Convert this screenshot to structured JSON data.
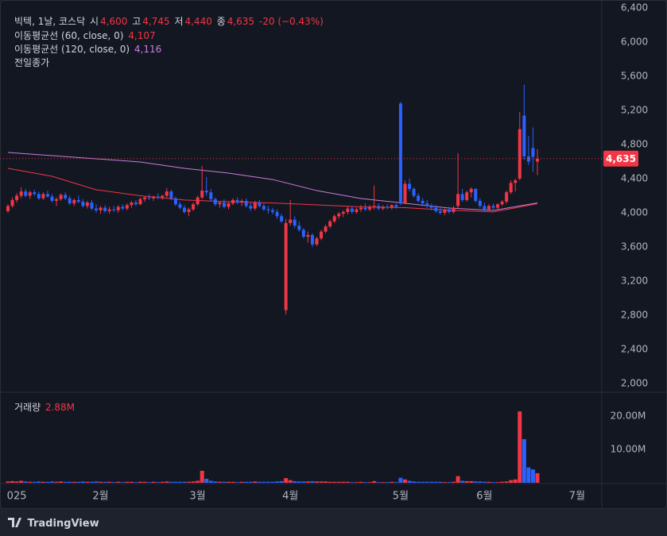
{
  "header": {
    "symbol": "빅텍, 1날, 코스닥",
    "o_label": "시",
    "o": "4,600",
    "h_label": "고",
    "h": "4,745",
    "l_label": "저",
    "l": "4,440",
    "c_label": "종",
    "c": "4,635",
    "change": "-20 (−0.43%)",
    "prev_close": "전일종가",
    "brand": "TradingView"
  },
  "chart_data": [
    {
      "type": "candlestick",
      "up_color": "#f23645",
      "down_color": "#2962ff",
      "x": [
        0,
        1,
        2,
        3,
        4,
        5,
        6,
        7,
        8,
        9,
        10,
        11,
        12,
        13,
        14,
        15,
        16,
        17,
        18,
        19,
        20,
        21,
        22,
        23,
        24,
        25,
        26,
        27,
        28,
        29,
        30,
        31,
        32,
        33,
        34,
        35,
        36,
        37,
        38,
        39,
        40,
        41,
        42,
        43,
        44,
        45,
        46,
        47,
        48,
        49,
        50,
        51,
        52,
        53,
        54,
        55,
        56,
        57,
        58,
        59,
        60,
        61,
        62,
        63,
        64,
        65,
        66,
        67,
        68,
        69,
        70,
        71,
        72,
        73,
        74,
        75,
        76,
        77,
        78,
        79,
        80,
        81,
        82,
        83,
        84,
        85,
        86,
        87,
        88,
        89,
        90,
        91,
        92,
        93,
        94,
        95,
        96,
        97,
        98,
        99,
        100,
        101,
        102,
        103,
        104,
        105,
        106,
        107,
        108,
        109,
        110,
        111,
        112,
        113,
        114,
        115,
        116,
        117,
        118,
        119,
        120
      ],
      "open": [
        4020,
        4080,
        4150,
        4200,
        4250,
        4200,
        4240,
        4220,
        4170,
        4220,
        4190,
        4140,
        4160,
        4210,
        4170,
        4110,
        4150,
        4130,
        4080,
        4120,
        4050,
        4030,
        4060,
        4020,
        4040,
        4030,
        4070,
        4050,
        4090,
        4120,
        4100,
        4160,
        4180,
        4170,
        4190,
        4180,
        4200,
        4250,
        4170,
        4100,
        4060,
        4010,
        4040,
        4100,
        4180,
        4260,
        4240,
        4160,
        4100,
        4120,
        4070,
        4110,
        4150,
        4120,
        4140,
        4080,
        4050,
        4120,
        4080,
        4040,
        4030,
        4010,
        3960,
        2860,
        3880,
        3920,
        3850,
        3800,
        3720,
        3740,
        3630,
        3700,
        3780,
        3840,
        3900,
        3960,
        3990,
        4010,
        4050,
        4010,
        4040,
        4060,
        4040,
        4070,
        4080,
        4050,
        4070,
        4060,
        4090,
        5280,
        4110,
        4340,
        4280,
        4200,
        4140,
        4110,
        4080,
        4060,
        4020,
        4000,
        4040,
        4010,
        4080,
        4220,
        4150,
        4240,
        4280,
        4140,
        4080,
        4040,
        4080,
        4060,
        4100,
        4130,
        4240,
        4350,
        4400,
        5140,
        4660,
        4760,
        4600
      ],
      "high": [
        4100,
        4180,
        4230,
        4300,
        4280,
        4260,
        4270,
        4250,
        4240,
        4260,
        4220,
        4180,
        4230,
        4240,
        4200,
        4170,
        4200,
        4160,
        4140,
        4150,
        4100,
        4080,
        4090,
        4070,
        4080,
        4090,
        4100,
        4110,
        4140,
        4150,
        4180,
        4200,
        4220,
        4200,
        4230,
        4210,
        4290,
        4270,
        4190,
        4130,
        4090,
        4060,
        4120,
        4200,
        4550,
        4420,
        4280,
        4180,
        4140,
        4160,
        4130,
        4170,
        4180,
        4160,
        4170,
        4120,
        4140,
        4150,
        4110,
        4080,
        4060,
        4040,
        3990,
        3930,
        4150,
        3960,
        3900,
        3820,
        3780,
        3760,
        3720,
        3800,
        3860,
        3920,
        3980,
        4010,
        4030,
        4080,
        4080,
        4060,
        4090,
        4110,
        4090,
        4320,
        4110,
        4090,
        4100,
        4100,
        4110,
        5300,
        4380,
        4400,
        4300,
        4230,
        4170,
        4150,
        4110,
        4090,
        4060,
        4050,
        4070,
        4080,
        4700,
        4280,
        4260,
        4300,
        4290,
        4170,
        4120,
        4100,
        4110,
        4110,
        4150,
        4260,
        4380,
        4400,
        5180,
        5500,
        4900,
        5000,
        4745
      ],
      "low": [
        4000,
        4060,
        4120,
        4170,
        4180,
        4160,
        4200,
        4150,
        4150,
        4180,
        4120,
        4080,
        4140,
        4150,
        4090,
        4080,
        4110,
        4060,
        4050,
        4030,
        4000,
        3990,
        4000,
        3990,
        4010,
        4000,
        4030,
        4030,
        4060,
        4080,
        4090,
        4130,
        4150,
        4140,
        4160,
        4150,
        4180,
        4150,
        4080,
        4040,
        3990,
        3960,
        4020,
        4080,
        4160,
        4200,
        4140,
        4080,
        4060,
        4050,
        4040,
        4090,
        4100,
        4080,
        4060,
        4020,
        4030,
        4060,
        4020,
        3990,
        3980,
        3930,
        3880,
        2810,
        3850,
        3820,
        3780,
        3700,
        3650,
        3600,
        3610,
        3680,
        3760,
        3820,
        3880,
        3930,
        3950,
        3980,
        3990,
        3990,
        4010,
        4020,
        4020,
        4040,
        4030,
        4030,
        4040,
        4040,
        4050,
        4090,
        4100,
        4250,
        4180,
        4120,
        4090,
        4060,
        4030,
        4000,
        3980,
        3970,
        3990,
        3990,
        4050,
        4130,
        4130,
        4180,
        4120,
        4060,
        4010,
        4020,
        4040,
        4040,
        4080,
        4110,
        4220,
        4250,
        4380,
        4620,
        4560,
        4480,
        4440
      ],
      "close": [
        4080,
        4150,
        4200,
        4250,
        4200,
        4240,
        4220,
        4170,
        4220,
        4190,
        4140,
        4160,
        4210,
        4170,
        4110,
        4150,
        4130,
        4080,
        4120,
        4050,
        4030,
        4060,
        4020,
        4040,
        4030,
        4070,
        4050,
        4090,
        4120,
        4100,
        4160,
        4180,
        4170,
        4190,
        4180,
        4200,
        4250,
        4170,
        4100,
        4060,
        4010,
        4040,
        4100,
        4180,
        4260,
        4240,
        4160,
        4100,
        4120,
        4070,
        4110,
        4150,
        4120,
        4140,
        4080,
        4050,
        4120,
        4080,
        4040,
        4030,
        4010,
        3960,
        3900,
        3880,
        3920,
        3850,
        3800,
        3720,
        3740,
        3630,
        3700,
        3780,
        3840,
        3900,
        3960,
        3990,
        4010,
        4050,
        4010,
        4040,
        4060,
        4040,
        4070,
        4080,
        4050,
        4070,
        4060,
        4090,
        4070,
        4110,
        4340,
        4280,
        4200,
        4140,
        4110,
        4080,
        4060,
        4020,
        4000,
        4040,
        4010,
        4060,
        4220,
        4150,
        4240,
        4280,
        4140,
        4080,
        4040,
        4080,
        4060,
        4100,
        4130,
        4240,
        4350,
        4380,
        4980,
        4660,
        4600,
        4655,
        4635
      ],
      "series": [
        {
          "name": "이동평균선 (60, close, 0)",
          "color": "#f23645",
          "value_label": "4,107",
          "x": [
            0,
            10,
            20,
            30,
            40,
            50,
            60,
            70,
            80,
            90,
            100,
            110,
            120
          ],
          "values": [
            4521,
            4428,
            4270,
            4200,
            4150,
            4130,
            4115,
            4093,
            4070,
            4060,
            4030,
            4010,
            4107
          ]
        },
        {
          "name": "이동평균선 (120, close, 0)",
          "color": "#c77ddb",
          "value_label": "4,116",
          "x": [
            0,
            10,
            20,
            30,
            40,
            50,
            60,
            70,
            80,
            90,
            100,
            110,
            120
          ],
          "values": [
            4707,
            4670,
            4633,
            4595,
            4521,
            4465,
            4390,
            4260,
            4167,
            4112,
            4056,
            4028,
            4116
          ]
        }
      ],
      "last_price_label": "4,635",
      "xlim": [
        -1.8,
        134.6
      ],
      "xticks": [
        {
          "value": 2,
          "label": "025"
        },
        {
          "value": 21,
          "label": "2월"
        },
        {
          "value": 43,
          "label": "3월"
        },
        {
          "value": 64,
          "label": "4월"
        },
        {
          "value": 89,
          "label": "5월"
        },
        {
          "value": 108,
          "label": "6월"
        },
        {
          "value": 129,
          "label": "7월"
        }
      ],
      "ylim": [
        1907,
        6493
      ],
      "yticks": [
        {
          "value": 2000,
          "label": "2,000"
        },
        {
          "value": 2400,
          "label": "2,400"
        },
        {
          "value": 2800,
          "label": "2,800"
        },
        {
          "value": 3200,
          "label": "3,200"
        },
        {
          "value": 3600,
          "label": "3,600"
        },
        {
          "value": 4000,
          "label": "4,000"
        },
        {
          "value": 4400,
          "label": "4,400"
        },
        {
          "value": 4800,
          "label": "4,800"
        },
        {
          "value": 5200,
          "label": "5,200"
        },
        {
          "value": 5600,
          "label": "5,600"
        },
        {
          "value": 6000,
          "label": "6,000"
        },
        {
          "value": 6400,
          "label": "6,400"
        }
      ]
    },
    {
      "type": "bar",
      "title": "거래량",
      "value_label": "2.88M",
      "values": [
        400000,
        500000,
        400000,
        600000,
        400000,
        300000,
        300000,
        400000,
        300000,
        300000,
        400000,
        300000,
        400000,
        300000,
        300000,
        300000,
        300000,
        400000,
        300000,
        300000,
        400000,
        300000,
        300000,
        300000,
        200000,
        300000,
        200000,
        300000,
        300000,
        200000,
        300000,
        300000,
        200000,
        300000,
        200000,
        300000,
        400000,
        300000,
        300000,
        300000,
        300000,
        300000,
        400000,
        600000,
        3600000,
        1200000,
        600000,
        400000,
        300000,
        300000,
        300000,
        300000,
        200000,
        300000,
        300000,
        300000,
        400000,
        300000,
        300000,
        300000,
        300000,
        400000,
        500000,
        1400000,
        800000,
        500000,
        400000,
        400000,
        400000,
        500000,
        400000,
        400000,
        400000,
        300000,
        300000,
        300000,
        300000,
        300000,
        200000,
        200000,
        300000,
        200000,
        200000,
        500000,
        200000,
        200000,
        200000,
        300000,
        200000,
        1500000,
        1000000,
        600000,
        400000,
        300000,
        300000,
        300000,
        300000,
        300000,
        300000,
        200000,
        200000,
        300000,
        2000000,
        600000,
        500000,
        500000,
        400000,
        400000,
        300000,
        300000,
        200000,
        200000,
        300000,
        400000,
        800000,
        1000000,
        21400000,
        13100000,
        4600000,
        4000000,
        2880000
      ],
      "ylim": [
        0,
        26900000
      ],
      "yticks": [
        {
          "value": 10000000,
          "label": "10.00M"
        },
        {
          "value": 20000000,
          "label": "20.00M"
        }
      ]
    }
  ]
}
